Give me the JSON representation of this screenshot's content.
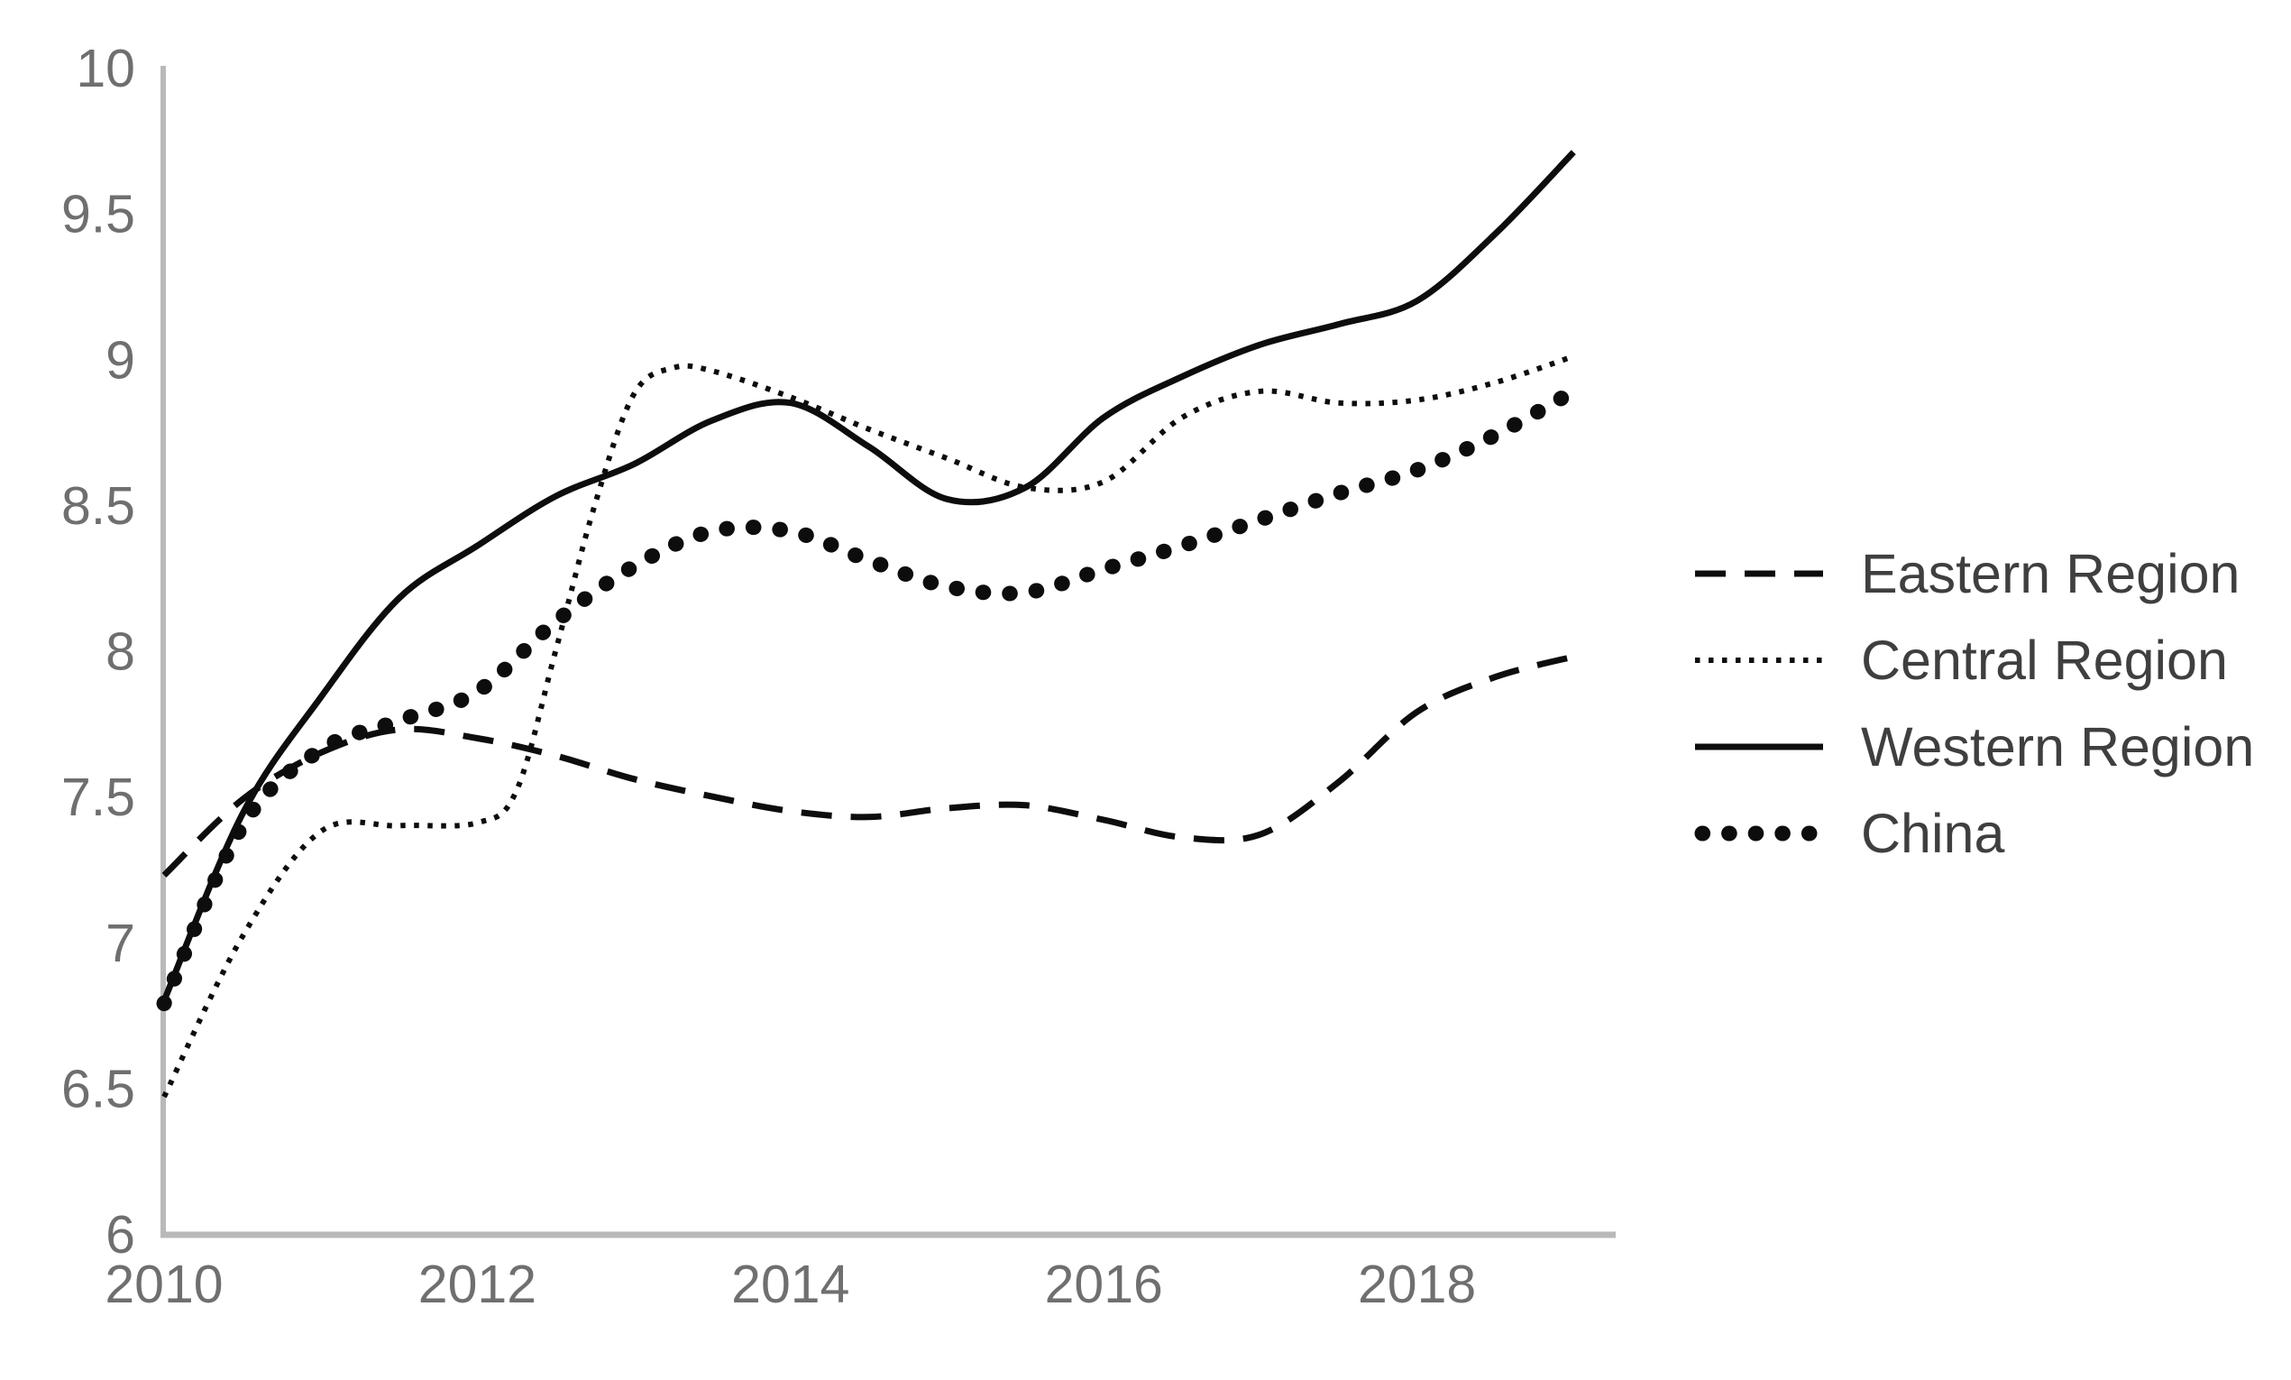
{
  "chart_data": {
    "type": "line",
    "title": "",
    "xlabel": "",
    "ylabel": "",
    "xlim": [
      2010,
      2019.25
    ],
    "ylim": [
      6,
      10
    ],
    "x_ticks": [
      2010,
      2012,
      2014,
      2016,
      2018
    ],
    "y_ticks": [
      6,
      6.5,
      7,
      7.5,
      8,
      8.5,
      9,
      9.5,
      10
    ],
    "grid": false,
    "legend_position": "right-middle",
    "line_color": "#0d0d0d",
    "axis_line_color": "#b9b9b9",
    "tick_label_color": "#6f6f6f",
    "legend_text_color": "#3f3f3f",
    "series": [
      {
        "name": "Eastern Region",
        "style": "dashed",
        "x": [
          2010,
          2010.5,
          2011,
          2011.5,
          2012,
          2012.5,
          2013,
          2013.5,
          2014,
          2014.5,
          2015,
          2015.5,
          2016,
          2016.5,
          2017,
          2017.5,
          2018,
          2018.5,
          2019
        ],
        "values": [
          7.23,
          7.49,
          7.65,
          7.73,
          7.7,
          7.64,
          7.56,
          7.5,
          7.45,
          7.43,
          7.46,
          7.47,
          7.42,
          7.36,
          7.37,
          7.55,
          7.79,
          7.91,
          7.98
        ]
      },
      {
        "name": "Central Region",
        "style": "fine-dotted",
        "x": [
          2010,
          2010.5,
          2011,
          2011.5,
          2012,
          2012.25,
          2012.5,
          2012.75,
          2013,
          2013.25,
          2013.5,
          2014,
          2014.5,
          2015,
          2015.5,
          2016,
          2016.5,
          2017,
          2017.5,
          2018,
          2018.5,
          2019
        ],
        "values": [
          6.47,
          7.02,
          7.38,
          7.4,
          7.41,
          7.52,
          8.0,
          8.5,
          8.88,
          8.97,
          8.96,
          8.87,
          8.76,
          8.66,
          8.56,
          8.58,
          8.8,
          8.89,
          8.85,
          8.86,
          8.92,
          9.01
        ]
      },
      {
        "name": "Western Region",
        "style": "solid",
        "x": [
          2010,
          2010.5,
          2011,
          2011.5,
          2012,
          2012.5,
          2013,
          2013.5,
          2014,
          2014.5,
          2015,
          2015.5,
          2016,
          2016.5,
          2017,
          2017.5,
          2018,
          2018.5,
          2019
        ],
        "values": [
          6.8,
          7.44,
          7.84,
          8.18,
          8.36,
          8.53,
          8.64,
          8.79,
          8.85,
          8.7,
          8.52,
          8.56,
          8.8,
          8.94,
          9.05,
          9.12,
          9.2,
          9.43,
          9.71
        ]
      },
      {
        "name": "China",
        "style": "bold-dotted",
        "x": [
          2010,
          2010.5,
          2011,
          2011.5,
          2012,
          2012.5,
          2013,
          2013.5,
          2014,
          2014.5,
          2015,
          2015.5,
          2016,
          2016.5,
          2017,
          2017.5,
          2018,
          2018.5,
          2019
        ],
        "values": [
          6.79,
          7.4,
          7.66,
          7.76,
          7.86,
          8.1,
          8.29,
          8.41,
          8.41,
          8.31,
          8.22,
          8.2,
          8.28,
          8.36,
          8.45,
          8.54,
          8.62,
          8.74,
          8.89
        ]
      }
    ]
  },
  "legend": {
    "items": [
      {
        "label": "Eastern Region",
        "style": "dashed"
      },
      {
        "label": "Central Region",
        "style": "fine-dotted"
      },
      {
        "label": "Western Region",
        "style": "solid"
      },
      {
        "label": "China",
        "style": "bold-dotted"
      }
    ]
  }
}
